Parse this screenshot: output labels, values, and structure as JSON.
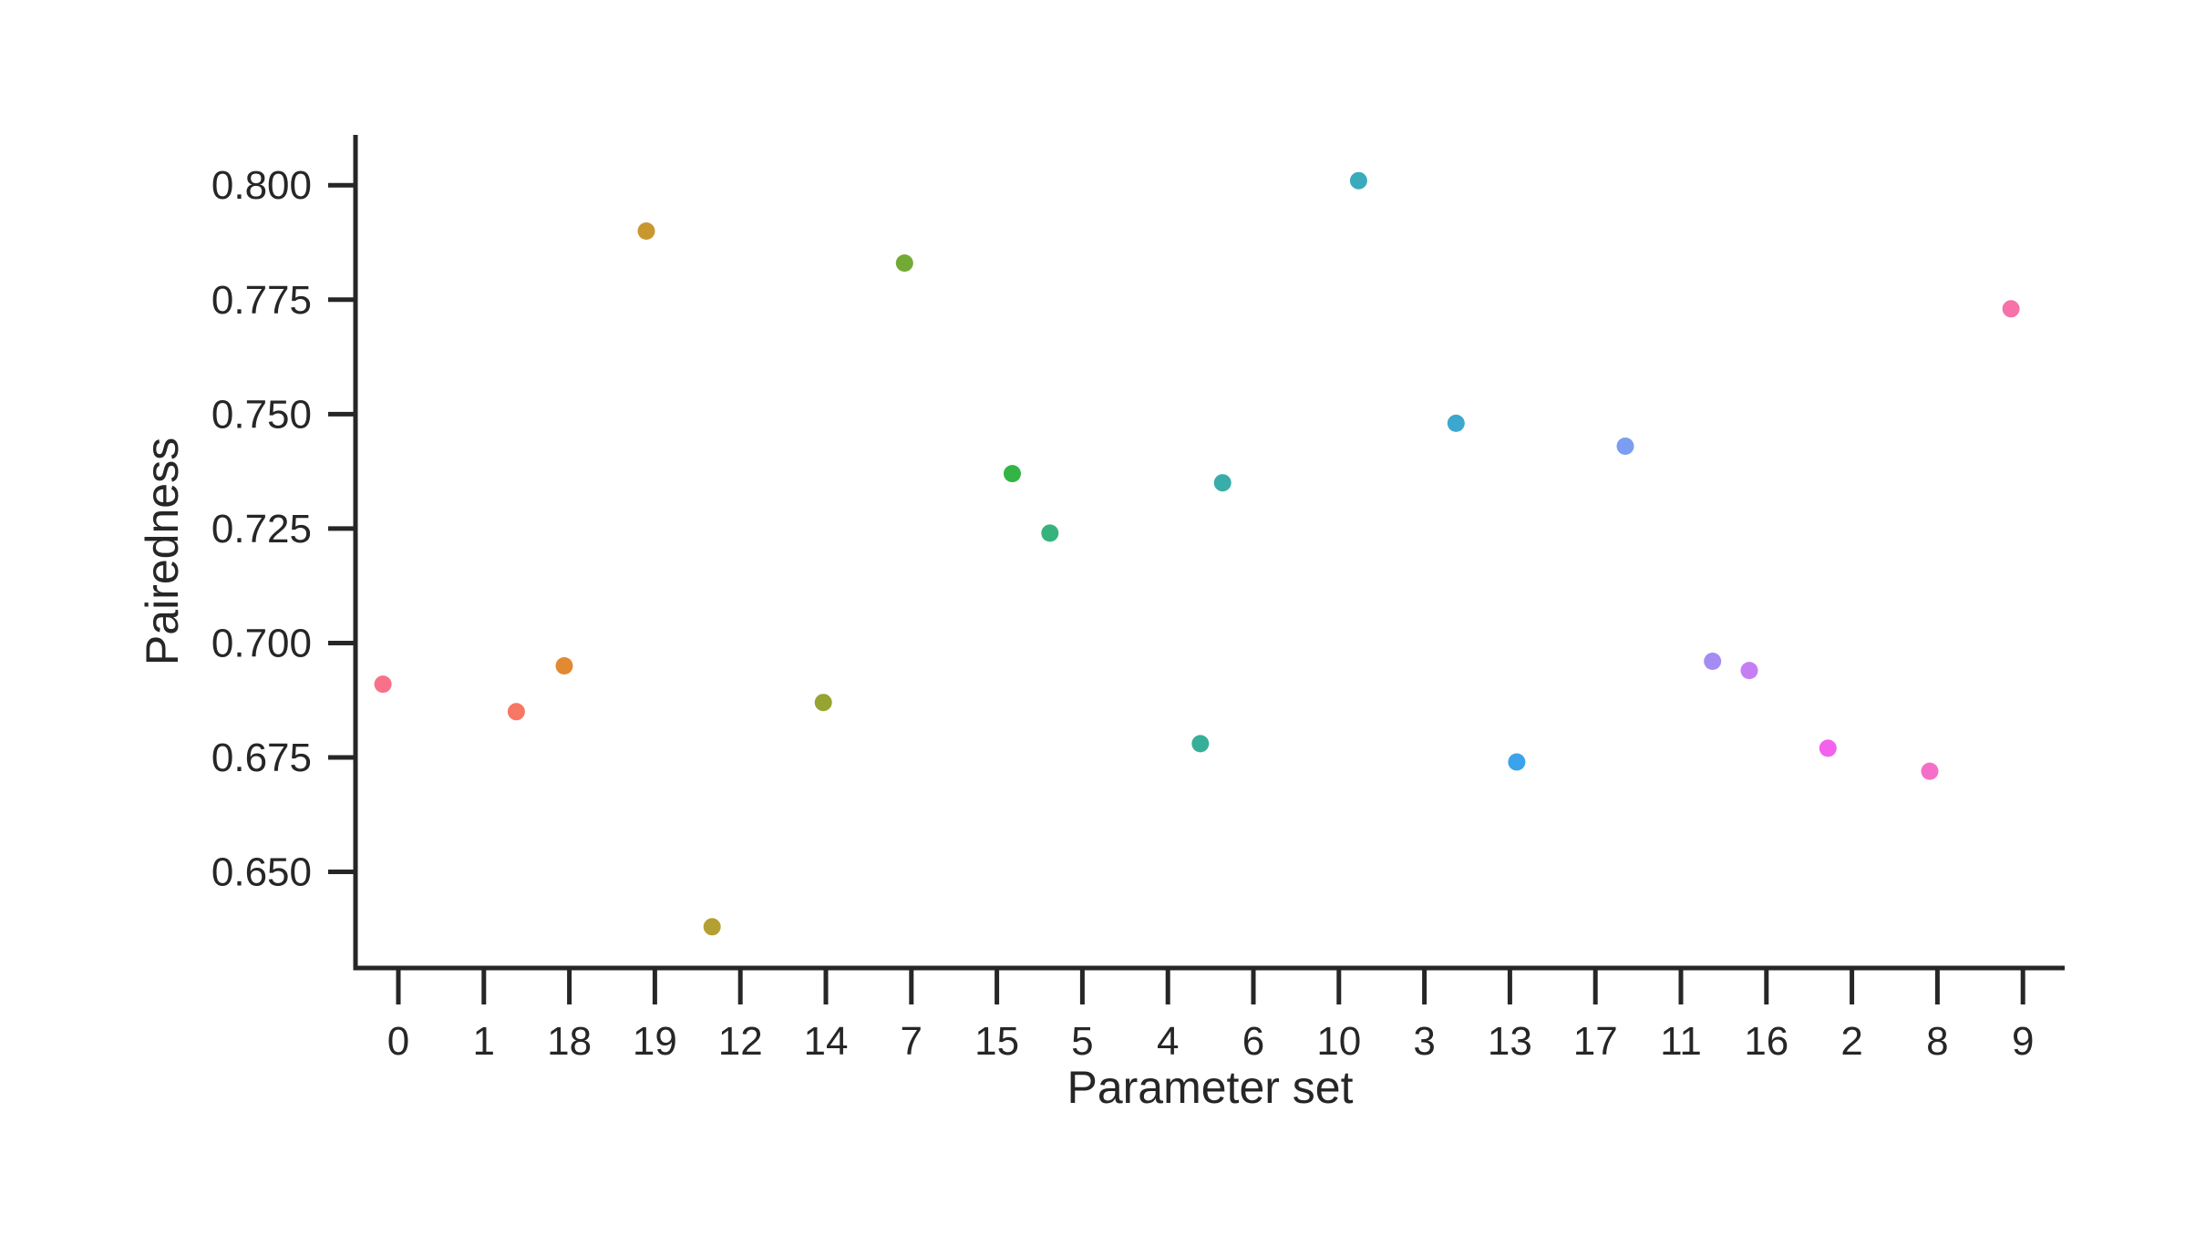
{
  "chart_data": {
    "type": "scatter",
    "title": "",
    "xlabel": "Parameter set",
    "ylabel": "Pairedness",
    "categories": [
      "0",
      "1",
      "18",
      "19",
      "12",
      "14",
      "7",
      "15",
      "5",
      "4",
      "6",
      "10",
      "3",
      "13",
      "17",
      "11",
      "16",
      "2",
      "8",
      "9"
    ],
    "ylim": [
      0.629,
      0.811
    ],
    "yticks": [
      "0.650",
      "0.675",
      "0.700",
      "0.725",
      "0.750",
      "0.775",
      "0.800"
    ],
    "grid": false,
    "legend": "none",
    "points": [
      {
        "category": "0",
        "offset": -0.18,
        "value": 0.691,
        "color": "#f77189"
      },
      {
        "category": "1",
        "offset": 0.38,
        "value": 0.685,
        "color": "#f67763"
      },
      {
        "category": "18",
        "offset": -0.06,
        "value": 0.695,
        "color": "#e18a32"
      },
      {
        "category": "19",
        "offset": -0.1,
        "value": 0.79,
        "color": "#c99730"
      },
      {
        "category": "12",
        "offset": -0.33,
        "value": 0.638,
        "color": "#b4a032"
      },
      {
        "category": "14",
        "offset": -0.03,
        "value": 0.687,
        "color": "#97a431"
      },
      {
        "category": "7",
        "offset": -0.08,
        "value": 0.783,
        "color": "#73aa35"
      },
      {
        "category": "15",
        "offset": 0.18,
        "value": 0.737,
        "color": "#33b445"
      },
      {
        "category": "5",
        "offset": -0.38,
        "value": 0.724,
        "color": "#36b27d"
      },
      {
        "category": "4",
        "offset": 0.38,
        "value": 0.678,
        "color": "#37af98"
      },
      {
        "category": "6",
        "offset": -0.36,
        "value": 0.735,
        "color": "#38adaa"
      },
      {
        "category": "10",
        "offset": 0.23,
        "value": 0.801,
        "color": "#3aabbd"
      },
      {
        "category": "3",
        "offset": 0.37,
        "value": 0.748,
        "color": "#3ca8d0"
      },
      {
        "category": "13",
        "offset": 0.08,
        "value": 0.674,
        "color": "#3ba3ec"
      },
      {
        "category": "17",
        "offset": 0.35,
        "value": 0.743,
        "color": "#7b9df2"
      },
      {
        "category": "11",
        "offset": 0.37,
        "value": 0.696,
        "color": "#a48cf4"
      },
      {
        "category": "16",
        "offset": -0.2,
        "value": 0.694,
        "color": "#c77ef4"
      },
      {
        "category": "2",
        "offset": -0.28,
        "value": 0.677,
        "color": "#f262ec"
      },
      {
        "category": "8",
        "offset": -0.09,
        "value": 0.672,
        "color": "#f56fc8"
      },
      {
        "category": "9",
        "offset": -0.14,
        "value": 0.773,
        "color": "#f672a9"
      }
    ]
  }
}
